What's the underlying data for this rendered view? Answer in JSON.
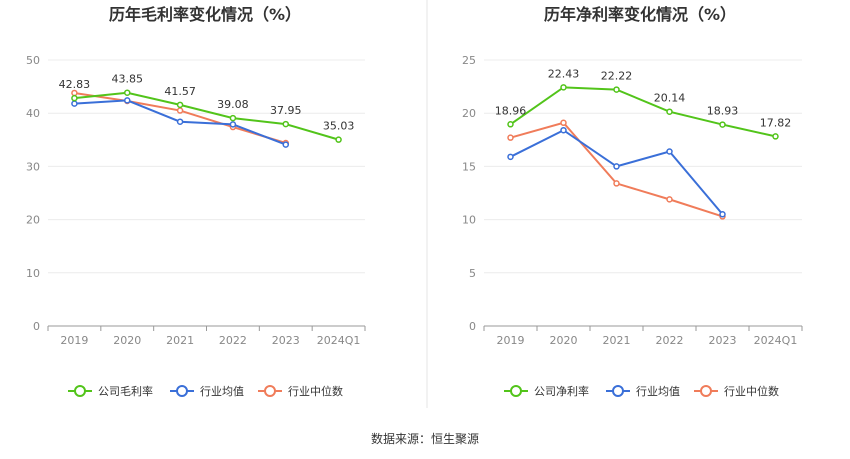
{
  "source": "数据来源：恒生聚源",
  "colors": {
    "company": "#52c41a",
    "avg": "#3a6fd8",
    "median": "#f07c5a"
  },
  "chart_data": [
    {
      "type": "line",
      "title": "历年毛利率变化情况（%）",
      "categories": [
        "2019",
        "2020",
        "2021",
        "2022",
        "2023",
        "2024Q1"
      ],
      "ylim": [
        0,
        50
      ],
      "yticks": [
        0,
        10,
        20,
        30,
        40,
        50
      ],
      "grid": true,
      "legend_position": "bottom",
      "series": [
        {
          "name": "公司毛利率",
          "key": "company",
          "values": [
            42.83,
            43.85,
            41.57,
            39.08,
            37.95,
            35.03
          ],
          "labels": true
        },
        {
          "name": "行业均值",
          "key": "avg",
          "values": [
            41.8,
            42.4,
            38.4,
            37.9,
            34.1,
            null
          ],
          "labels": false
        },
        {
          "name": "行业中位数",
          "key": "median",
          "values": [
            43.8,
            42.3,
            40.5,
            37.4,
            34.4,
            null
          ],
          "labels": false
        }
      ]
    },
    {
      "type": "line",
      "title": "历年净利率变化情况（%）",
      "categories": [
        "2019",
        "2020",
        "2021",
        "2022",
        "2023",
        "2024Q1"
      ],
      "ylim": [
        0,
        25
      ],
      "yticks": [
        0,
        5,
        10,
        15,
        20,
        25
      ],
      "grid": true,
      "legend_position": "bottom",
      "series": [
        {
          "name": "公司净利率",
          "key": "company",
          "values": [
            18.96,
            22.43,
            22.22,
            20.14,
            18.93,
            17.82
          ],
          "labels": true
        },
        {
          "name": "行业均值",
          "key": "avg",
          "values": [
            15.9,
            18.4,
            15.0,
            16.4,
            10.5,
            null
          ],
          "labels": false
        },
        {
          "name": "行业中位数",
          "key": "median",
          "values": [
            17.7,
            19.1,
            13.4,
            11.9,
            10.3,
            null
          ],
          "labels": false
        }
      ]
    }
  ]
}
